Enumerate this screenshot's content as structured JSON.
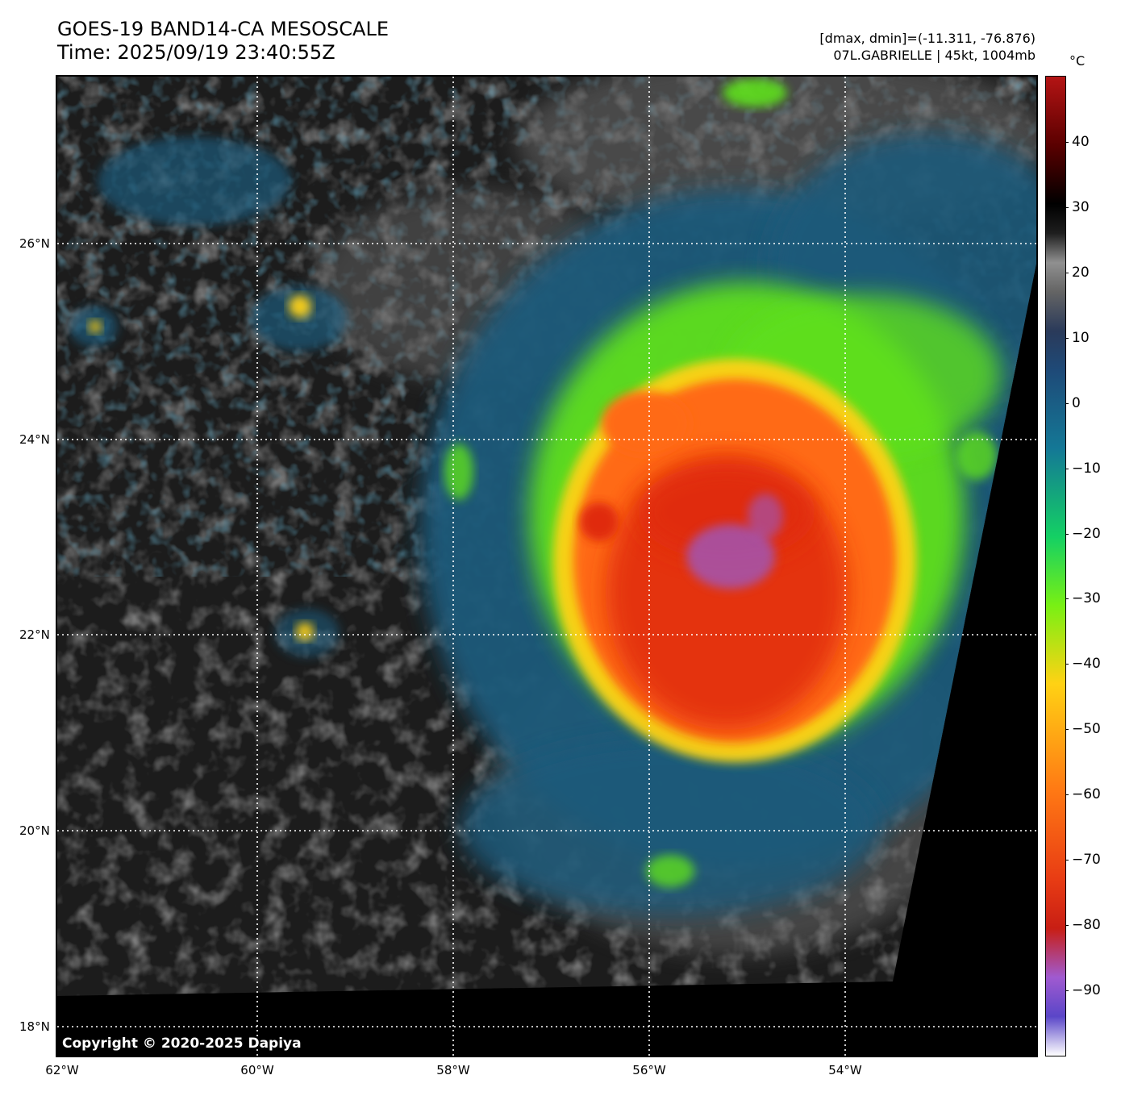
{
  "title": {
    "line1": "GOES-19 BAND14-CA MESOSCALE",
    "line2": "Time: 2025/09/19 23:40:55Z"
  },
  "info": {
    "line1": "[dmax, dmin]=(-11.311, -76.876)",
    "line2": "07L.GABRIELLE | 45kt, 1004mb"
  },
  "colorbar": {
    "unit": "°C",
    "range": [
      -100,
      50
    ],
    "labels": [
      "40",
      "30",
      "20",
      "10",
      "0",
      "−10",
      "−20",
      "−30",
      "−40",
      "−50",
      "−60",
      "−70",
      "−80",
      "−90"
    ],
    "values": [
      40,
      30,
      20,
      10,
      0,
      -10,
      -20,
      -30,
      -40,
      -50,
      -60,
      -70,
      -80,
      -90
    ],
    "colors": [
      "#ffffff",
      "#5a46c8",
      "#a05ad0",
      "#c81e14",
      "#e83c14",
      "#ff7814",
      "#ffd214",
      "#78f014",
      "#14d064",
      "#147896",
      "#1e4a78",
      "#2a3a5a",
      "#646464",
      "#909090",
      "#1e1e1e",
      "#000000",
      "#5a0000",
      "#b41414"
    ]
  },
  "map": {
    "lon_labels": [
      "62°W",
      "60°W",
      "58°W",
      "56°W",
      "54°W"
    ],
    "lat_labels": [
      "26°N",
      "24°N",
      "22°N",
      "20°N",
      "18°N"
    ],
    "storm_colors": {
      "background": "#1c1c1c",
      "cloud_gray": "#6e6e6e",
      "blue_band": "#1e5a7a",
      "green_band": "#5ee01e",
      "yellow_band": "#ffd214",
      "orange_band": "#ff6a14",
      "red_core": "#e02a10",
      "purple_center": "#9a5ac8",
      "nodata": "#000000"
    }
  },
  "copyright": "Copyright © 2020-2025 Dapiya"
}
